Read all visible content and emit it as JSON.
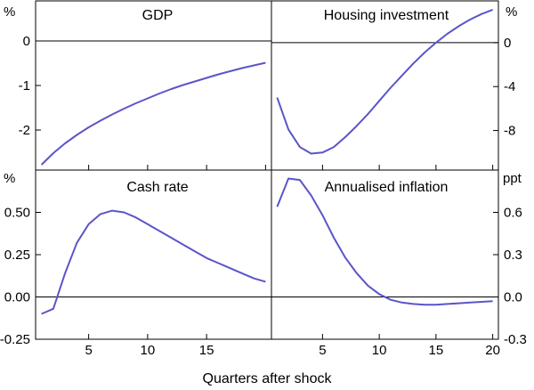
{
  "figure": {
    "xlabel": "Quarters after shock"
  },
  "chart_data": [
    {
      "type": "line",
      "title": "GDP",
      "unit_label": "%",
      "axis_side": "left",
      "ylim": [
        -2.9,
        0.9
      ],
      "yticks": [
        0,
        -1,
        -2
      ],
      "ytick_labels": [
        "0",
        "-1",
        "-2"
      ],
      "xlim": [
        0.5,
        20.5
      ],
      "x": [
        1,
        2,
        3,
        4,
        5,
        6,
        7,
        8,
        9,
        10,
        11,
        12,
        13,
        14,
        15,
        16,
        17,
        18,
        19,
        20
      ],
      "series": [
        {
          "name": "GDP",
          "color": "#5b55c8",
          "values": [
            -2.78,
            -2.52,
            -2.3,
            -2.11,
            -1.94,
            -1.79,
            -1.65,
            -1.52,
            -1.4,
            -1.29,
            -1.18,
            -1.08,
            -0.99,
            -0.91,
            -0.83,
            -0.75,
            -0.68,
            -0.61,
            -0.55,
            -0.49
          ]
        }
      ]
    },
    {
      "type": "line",
      "title": "Housing investment",
      "unit_label": "%",
      "axis_side": "right",
      "ylim": [
        -11.6,
        3.8
      ],
      "yticks": [
        0,
        -4,
        -8
      ],
      "ytick_labels": [
        "0",
        "-4",
        "-8"
      ],
      "xlim": [
        0.5,
        20.5
      ],
      "x": [
        1,
        2,
        3,
        4,
        5,
        6,
        7,
        8,
        9,
        10,
        11,
        12,
        13,
        14,
        15,
        16,
        17,
        18,
        19,
        20
      ],
      "series": [
        {
          "name": "Housing investment",
          "color": "#5b55c8",
          "values": [
            -5.0,
            -7.9,
            -9.5,
            -10.1,
            -10.0,
            -9.5,
            -8.6,
            -7.6,
            -6.5,
            -5.3,
            -4.1,
            -3.0,
            -1.9,
            -0.9,
            0.0,
            0.8,
            1.5,
            2.1,
            2.6,
            3.0
          ]
        }
      ]
    },
    {
      "type": "line",
      "title": "Cash rate",
      "unit_label": "%",
      "axis_side": "left",
      "ylim": [
        -0.25,
        0.75
      ],
      "yticks": [
        0.5,
        0.25,
        0,
        -0.25
      ],
      "ytick_labels": [
        "0.50",
        "0.25",
        "0.00",
        "-0.25"
      ],
      "xlim": [
        0.5,
        20.5
      ],
      "x": [
        1,
        2,
        3,
        4,
        5,
        6,
        7,
        8,
        9,
        10,
        11,
        12,
        13,
        14,
        15,
        16,
        17,
        18,
        19,
        20
      ],
      "series": [
        {
          "name": "Cash rate",
          "color": "#5b55c8",
          "values": [
            -0.1,
            -0.07,
            0.14,
            0.32,
            0.43,
            0.49,
            0.51,
            0.5,
            0.47,
            0.43,
            0.39,
            0.35,
            0.31,
            0.27,
            0.23,
            0.2,
            0.17,
            0.14,
            0.11,
            0.09
          ]
        }
      ]
    },
    {
      "type": "line",
      "title": "Annualised inflation",
      "unit_label": "ppt",
      "axis_side": "right",
      "ylim": [
        -0.3,
        0.9
      ],
      "yticks": [
        0.6,
        0.3,
        0,
        -0.3
      ],
      "ytick_labels": [
        "0.6",
        "0.3",
        "0.0",
        "-0.3"
      ],
      "xlim": [
        0.5,
        20.5
      ],
      "xticks": [
        5,
        10,
        15,
        20
      ],
      "xtick_labels": [
        "5",
        "10",
        "15",
        "20"
      ],
      "x": [
        1,
        2,
        3,
        4,
        5,
        6,
        7,
        8,
        9,
        10,
        11,
        12,
        13,
        14,
        15,
        16,
        17,
        18,
        19,
        20
      ],
      "series": [
        {
          "name": "Annualised inflation",
          "color": "#5b55c8",
          "values": [
            0.64,
            0.84,
            0.83,
            0.72,
            0.58,
            0.42,
            0.28,
            0.17,
            0.08,
            0.02,
            -0.02,
            -0.04,
            -0.05,
            -0.055,
            -0.055,
            -0.05,
            -0.045,
            -0.04,
            -0.035,
            -0.03
          ]
        }
      ]
    }
  ],
  "bottom_left_xticks": [
    5,
    10,
    15
  ],
  "bottom_left_xtick_labels": [
    "5",
    "10",
    "15"
  ]
}
